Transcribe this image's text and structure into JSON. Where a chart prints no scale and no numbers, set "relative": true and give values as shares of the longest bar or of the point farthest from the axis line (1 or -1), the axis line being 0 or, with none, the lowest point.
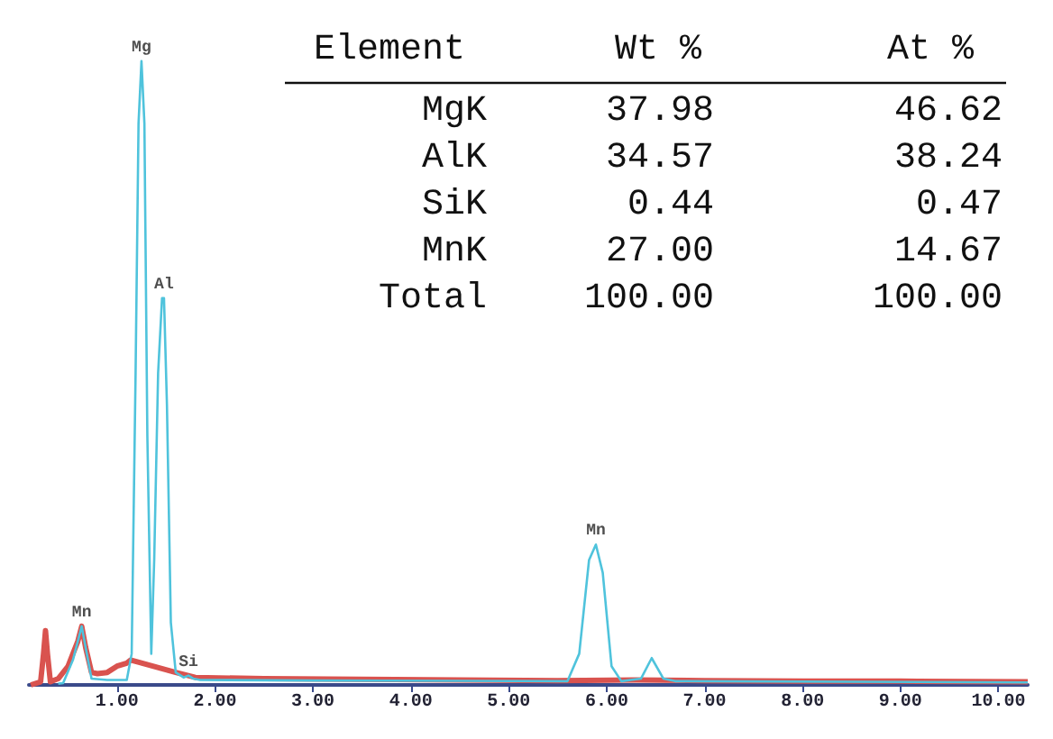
{
  "chart_data": {
    "type": "line",
    "relative": true,
    "marker": "none",
    "line_style": "solid",
    "grid": false,
    "xlim": [
      0.1,
      10.3
    ],
    "xticks": [
      {
        "value": 1,
        "label": "1.00"
      },
      {
        "value": 2,
        "label": "2.00"
      },
      {
        "value": 3,
        "label": "3.00"
      },
      {
        "value": 4,
        "label": "4.00"
      },
      {
        "value": 5,
        "label": "5.00"
      },
      {
        "value": 6,
        "label": "6.00"
      },
      {
        "value": 7,
        "label": "7.00"
      },
      {
        "value": 8,
        "label": "8.00"
      },
      {
        "value": 9,
        "label": "9.00"
      },
      {
        "value": 10,
        "label": "10.00"
      }
    ],
    "series": [
      {
        "color": "#d9534f",
        "x": [
          0.12,
          0.22,
          0.25,
          0.27,
          0.29,
          0.32,
          0.4,
          0.5,
          0.55,
          0.6,
          0.64,
          0.68,
          0.74,
          0.8,
          0.9,
          1.0,
          1.1,
          1.14,
          1.6,
          1.8,
          2.5,
          3.5,
          4.5,
          5.5,
          6.3,
          7,
          8,
          9,
          10.3
        ],
        "values": [
          0.0,
          0.005,
          0.05,
          0.087,
          0.05,
          0.005,
          0.01,
          0.03,
          0.05,
          0.07,
          0.094,
          0.06,
          0.02,
          0.018,
          0.02,
          0.03,
          0.035,
          0.04,
          0.02,
          0.012,
          0.01,
          0.009,
          0.008,
          0.007,
          0.008,
          0.007,
          0.006,
          0.006,
          0.005
        ]
      },
      {
        "color": "#4fc3dc",
        "x": [
          0.4,
          0.45,
          0.55,
          0.6,
          0.64,
          0.68,
          0.74,
          0.9,
          1.1,
          1.15,
          1.19,
          1.22,
          1.25,
          1.28,
          1.31,
          1.35,
          1.38,
          1.42,
          1.46,
          1.48,
          1.51,
          1.55,
          1.6,
          1.68,
          1.73,
          1.78,
          1.85,
          3,
          5.6,
          5.72,
          5.82,
          5.89,
          5.96,
          6.05,
          6.15,
          6.35,
          6.46,
          6.58,
          6.7,
          10.3
        ],
        "values": [
          0.002,
          0.003,
          0.04,
          0.07,
          0.094,
          0.06,
          0.01,
          0.008,
          0.008,
          0.05,
          0.5,
          0.9,
          1,
          0.9,
          0.4,
          0.05,
          0.2,
          0.5,
          0.62,
          0.62,
          0.45,
          0.1,
          0.02,
          0.012,
          0.015,
          0.01,
          0.008,
          0.007,
          0.006,
          0.05,
          0.2,
          0.225,
          0.18,
          0.03,
          0.006,
          0.01,
          0.043,
          0.01,
          0.006,
          0.004
        ]
      }
    ],
    "annotations": [
      {
        "text": "Mg",
        "x": 1.25,
        "y": 1
      },
      {
        "text": "Al",
        "x": 1.48,
        "y": 0.62
      },
      {
        "text": "Mn",
        "x": 0.64,
        "y": 0.094
      },
      {
        "text": "Si",
        "x": 1.73,
        "y": 0.015
      },
      {
        "text": "Mn",
        "x": 5.89,
        "y": 0.225
      },
      "Element",
      "Wt %",
      "At %",
      "MgK",
      "37.98",
      "46.62",
      "AlK",
      "34.57",
      "38.24",
      "SiK",
      "0.44",
      "0.47",
      "MnK",
      "27.00",
      "14.67",
      "Total",
      "100.00",
      "100.00"
    ]
  }
}
